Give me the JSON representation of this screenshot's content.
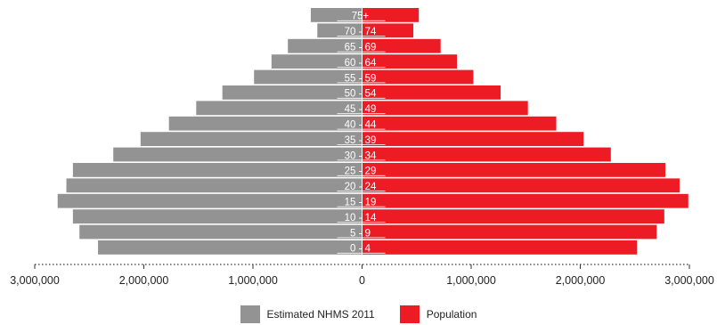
{
  "chart_data": {
    "type": "bar",
    "orientation": "horizontal-population-pyramid",
    "categories": [
      "0 - 4",
      "5 - 9",
      "10 - 14",
      "15 - 19",
      "20 - 24",
      "25 - 29",
      "30 - 34",
      "35 - 39",
      "40 - 44",
      "45 - 49",
      "50 - 54",
      "55 - 59",
      "60 - 64",
      "65 - 69",
      "70 - 74",
      "75+"
    ],
    "series": [
      {
        "name": "Estimated NHMS 2011",
        "side": "left",
        "color": "#939393",
        "values": [
          2420000,
          2590000,
          2650000,
          2790000,
          2710000,
          2650000,
          2280000,
          2030000,
          1770000,
          1520000,
          1280000,
          990000,
          830000,
          680000,
          410000,
          470000
        ]
      },
      {
        "name": "Population",
        "side": "right",
        "color": "#ed1c24",
        "values": [
          2520000,
          2700000,
          2770000,
          2990000,
          2910000,
          2780000,
          2280000,
          2030000,
          1780000,
          1520000,
          1270000,
          1020000,
          870000,
          720000,
          470000,
          520000
        ]
      }
    ],
    "xlim": [
      -3300000,
      3300000
    ],
    "x_ticks": [
      {
        "value": -3000000,
        "label": "3,000,000"
      },
      {
        "value": -2000000,
        "label": "2,000,000"
      },
      {
        "value": -1000000,
        "label": "1,000,000"
      },
      {
        "value": 0,
        "label": "0"
      },
      {
        "value": 1000000,
        "label": "1,000,000"
      },
      {
        "value": 2000000,
        "label": "2,000,000"
      },
      {
        "value": 3000000,
        "label": "3,000,000"
      }
    ],
    "axis_style": "dotted",
    "grid": false,
    "legend_position": "bottom-center",
    "label_color": "#ffffff"
  }
}
